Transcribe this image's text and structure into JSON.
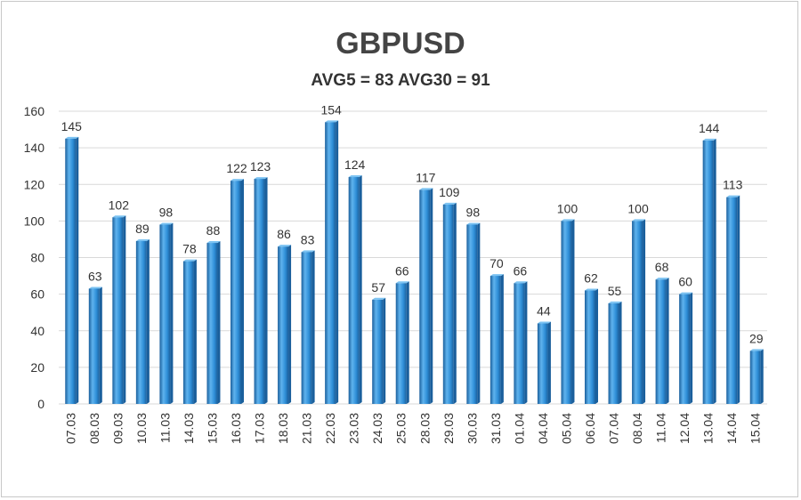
{
  "chart_data": {
    "type": "bar",
    "title": "GBPUSD",
    "subtitle": "AVG5 = 83 AVG30 = 91",
    "categories": [
      "07.03",
      "08.03",
      "09.03",
      "10.03",
      "11.03",
      "14.03",
      "15.03",
      "16.03",
      "17.03",
      "18.03",
      "21.03",
      "22.03",
      "23.03",
      "24.03",
      "25.03",
      "28.03",
      "29.03",
      "30.03",
      "31.03",
      "01.04",
      "04.04",
      "05.04",
      "06.04",
      "07.04",
      "08.04",
      "11.04",
      "12.04",
      "13.04",
      "14.04",
      "15.04"
    ],
    "values": [
      145,
      63,
      102,
      89,
      98,
      78,
      88,
      122,
      123,
      86,
      83,
      154,
      124,
      57,
      66,
      117,
      109,
      98,
      70,
      66,
      44,
      100,
      62,
      55,
      100,
      68,
      60,
      144,
      113,
      29
    ],
    "ylim": [
      0,
      160
    ],
    "yticks": [
      0,
      20,
      40,
      60,
      80,
      100,
      120,
      140,
      160
    ],
    "grid": true,
    "legend": "none",
    "colors": {
      "bar": "#2f8fd8",
      "bar_dark": "#1a5f9c",
      "bar_light": "#7cc3f2",
      "grid": "#d9d9d9"
    }
  }
}
